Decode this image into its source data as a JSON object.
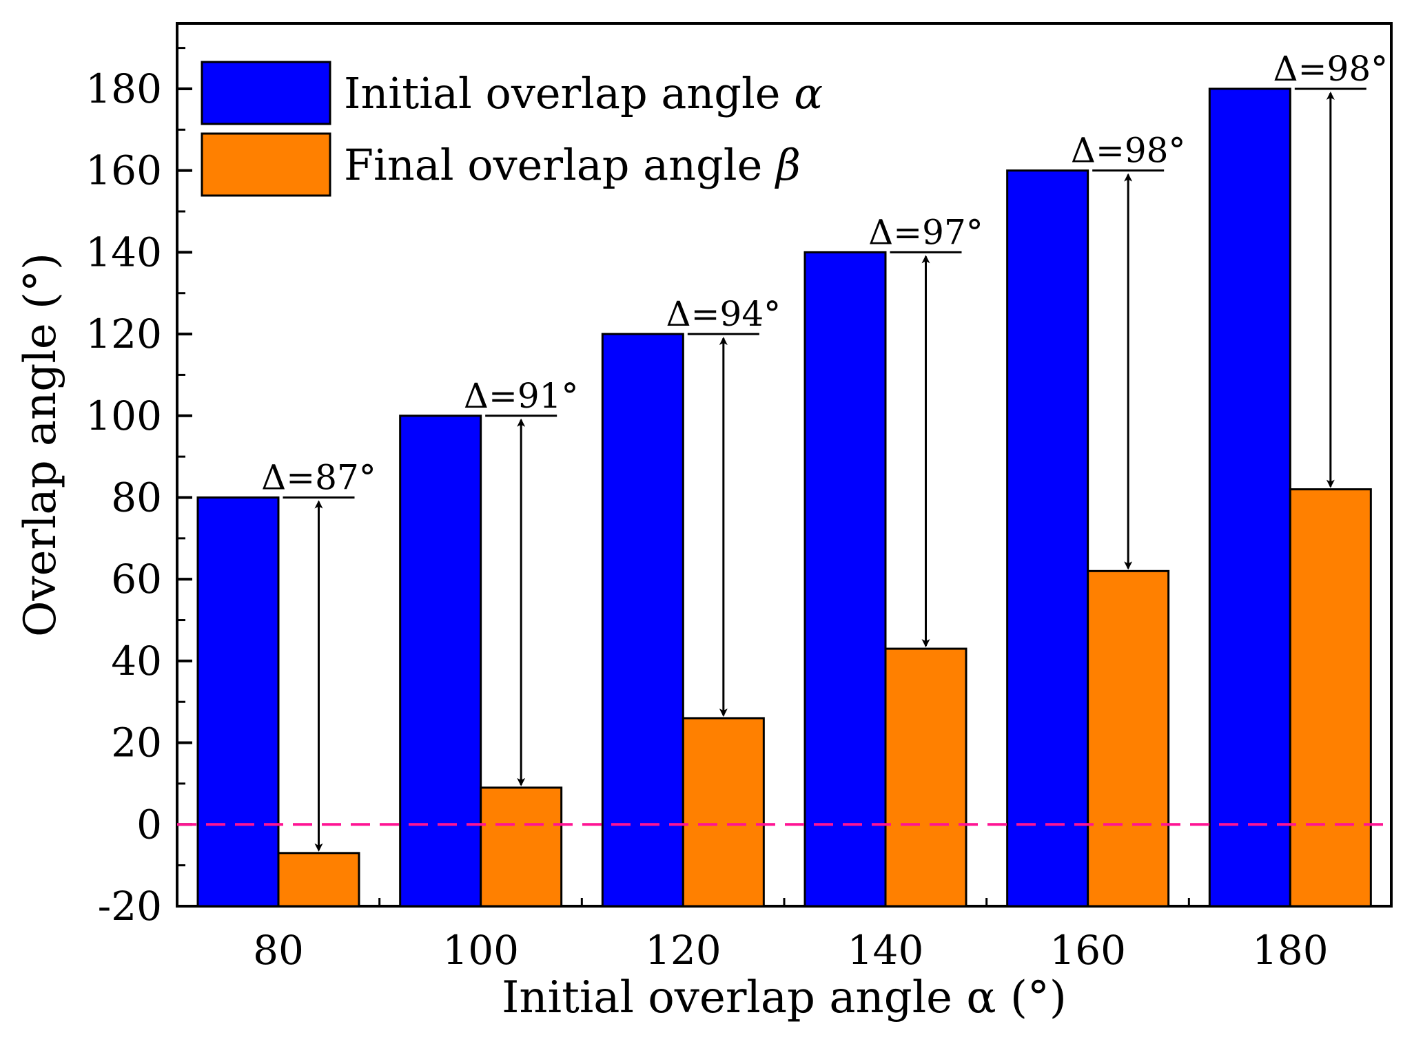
{
  "chart_data": {
    "type": "bar",
    "title": "",
    "xlabel": "Initial overlap angle α (°)",
    "ylabel": "Overlap angle (°)",
    "categories": [
      "80",
      "100",
      "120",
      "140",
      "160",
      "180"
    ],
    "ylim": [
      -20,
      196
    ],
    "y_ticks": [
      -20,
      0,
      20,
      40,
      60,
      80,
      100,
      120,
      140,
      160,
      180
    ],
    "y_tick_labels": [
      "-20",
      "0",
      "20",
      "40",
      "60",
      "80",
      "100",
      "120",
      "140",
      "160",
      "180"
    ],
    "series": [
      {
        "name": "Initial overlap angle α",
        "color": "#0000ff",
        "values": [
          80,
          100,
          120,
          140,
          160,
          180
        ]
      },
      {
        "name": "Final overlap angle β",
        "color": "#ff8000",
        "values": [
          -7,
          9,
          26,
          43,
          62,
          82
        ]
      }
    ],
    "legend": {
      "position": "top-left",
      "entries": [
        {
          "prefix": "Initial overlap angle ",
          "symbol": "α"
        },
        {
          "prefix": "Final overlap angle ",
          "symbol": "β"
        }
      ]
    },
    "annotations": [
      {
        "label": "Δ=87°",
        "from": -7,
        "to": 80
      },
      {
        "label": "Δ=91°",
        "from": 9,
        "to": 100
      },
      {
        "label": "Δ=94°",
        "from": 26,
        "to": 120
      },
      {
        "label": "Δ=97°",
        "from": 43,
        "to": 140
      },
      {
        "label": "Δ=98°",
        "from": 62,
        "to": 160
      },
      {
        "label": "Δ=98°",
        "from": 82,
        "to": 180
      }
    ],
    "reference_line": {
      "y": 0,
      "style": "dashed",
      "color": "#ff1493"
    },
    "grid": false
  }
}
